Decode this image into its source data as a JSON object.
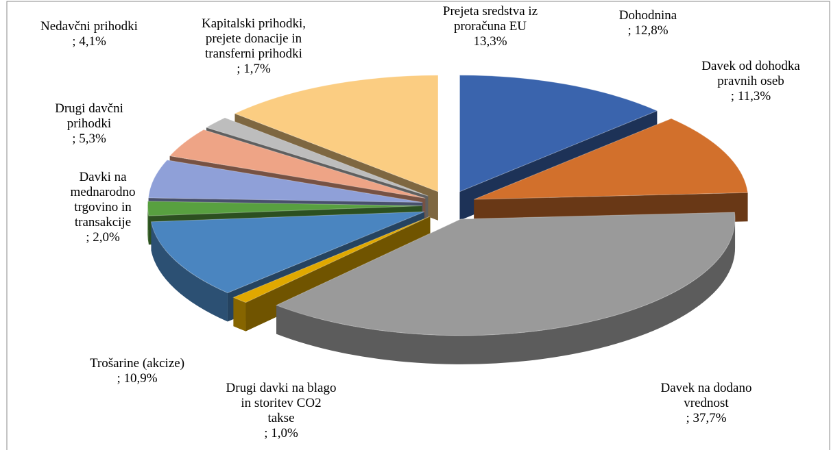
{
  "chart_data": {
    "type": "pie3d",
    "categories": [
      "Dohodnina",
      "Davek od dohodka pravnih oseb",
      "Davek na dodano vrednost",
      "Drugi davki na blago in storitev CO2 takse",
      "Trošarine (akcize)",
      "Davki na mednarodno trgovino in transakcije",
      "Drugi davčni prihodki",
      "Nedavčni prihodki",
      "Kapitalski prihodki, prejete donacije in transferni prihodki",
      "Prejeta sredstva iz proračuna EU"
    ],
    "values": [
      12.8,
      11.3,
      37.7,
      1.0,
      10.9,
      2.0,
      5.3,
      4.1,
      1.7,
      13.3
    ],
    "value_labels": [
      "; 12,8%",
      "; 11,3%",
      "; 37,7%",
      "; 1,0%",
      "; 10,9%",
      "; 2,0%",
      "; 5,3%",
      "; 4,1%",
      "; 1,7%",
      "13,3%"
    ],
    "colors": [
      "#3a64ad",
      "#d2702c",
      "#9a9a9a",
      "#e0a800",
      "#4a85c0",
      "#58a040",
      "#8fa0d8",
      "#eea486",
      "#bdbdbd",
      "#fbcd82"
    ]
  }
}
